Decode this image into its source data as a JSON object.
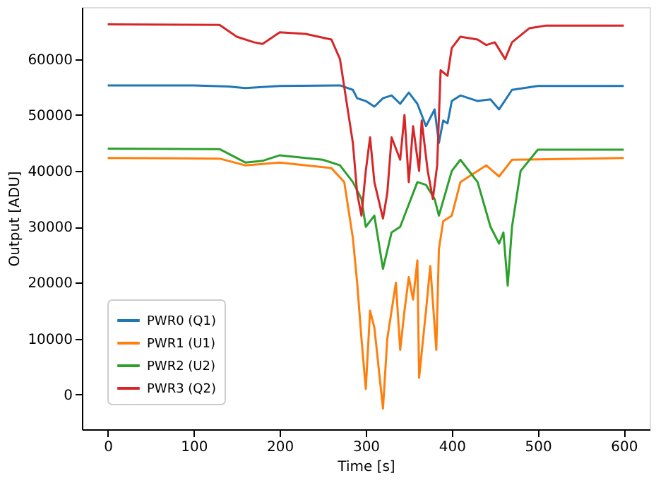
{
  "chart_data": {
    "type": "line",
    "xlabel": "Time [s]",
    "ylabel": "Output [ADU]",
    "xlim": [
      -30,
      630
    ],
    "xticks": [
      0,
      100,
      200,
      300,
      400,
      500,
      600
    ],
    "ylim": [
      -6200,
      69300
    ],
    "yticks": [
      0,
      10000,
      20000,
      30000,
      40000,
      50000,
      60000
    ],
    "grid": false,
    "legend": "bottom left",
    "line_style": "solid",
    "marker": "none",
    "series": [
      {
        "name": "PWR0 (Q1)",
        "color": "#1f77b4",
        "x": [
          0,
          100,
          140,
          160,
          200,
          270,
          285,
          290,
          300,
          310,
          320,
          330,
          340,
          350,
          360,
          370,
          380,
          385,
          390,
          395,
          400,
          410,
          430,
          445,
          455,
          470,
          500,
          600
        ],
        "values": [
          55300,
          55300,
          55100,
          54800,
          55200,
          55300,
          54500,
          53000,
          52500,
          51500,
          53000,
          53500,
          52000,
          54000,
          52000,
          48000,
          51000,
          45000,
          49000,
          48500,
          52500,
          53500,
          52500,
          52800,
          51000,
          54500,
          55200,
          55200
        ]
      },
      {
        "name": "PWR1 (U1)",
        "color": "#ff7f0e",
        "x": [
          0,
          130,
          160,
          200,
          260,
          275,
          285,
          290,
          295,
          300,
          305,
          310,
          320,
          325,
          335,
          340,
          345,
          350,
          355,
          360,
          362,
          370,
          375,
          382,
          385,
          390,
          400,
          410,
          420,
          440,
          455,
          470,
          600
        ],
        "values": [
          42300,
          42200,
          41000,
          41500,
          40500,
          38000,
          28000,
          20000,
          10000,
          1000,
          15000,
          12000,
          -2500,
          10000,
          20000,
          8000,
          15000,
          21000,
          17000,
          24000,
          3000,
          15000,
          23000,
          8000,
          26000,
          31000,
          32000,
          38000,
          39000,
          41000,
          39000,
          42000,
          42300
        ]
      },
      {
        "name": "PWR2 (U2)",
        "color": "#2ca02c",
        "x": [
          0,
          130,
          160,
          180,
          200,
          250,
          270,
          285,
          295,
          300,
          310,
          320,
          330,
          340,
          360,
          370,
          380,
          385,
          400,
          410,
          430,
          445,
          455,
          460,
          465,
          470,
          480,
          500,
          600
        ],
        "values": [
          44000,
          43900,
          41500,
          41800,
          42800,
          42000,
          41000,
          38000,
          35000,
          30000,
          32000,
          22500,
          29000,
          30000,
          38000,
          37500,
          35000,
          32000,
          40000,
          42000,
          38000,
          30000,
          27000,
          29000,
          19500,
          30000,
          40000,
          43800,
          43800
        ]
      },
      {
        "name": "PWR3 (Q2)",
        "color": "#d62728",
        "x": [
          0,
          130,
          150,
          170,
          180,
          200,
          230,
          260,
          270,
          280,
          285,
          290,
          295,
          300,
          305,
          310,
          320,
          325,
          330,
          340,
          345,
          350,
          355,
          362,
          365,
          372,
          378,
          383,
          387,
          395,
          400,
          410,
          430,
          440,
          450,
          462,
          470,
          490,
          510,
          600
        ],
        "values": [
          66200,
          66100,
          64000,
          63000,
          62700,
          64800,
          64500,
          63500,
          60000,
          50000,
          45000,
          36000,
          32000,
          40000,
          46000,
          38000,
          31500,
          36000,
          46000,
          42000,
          50000,
          38000,
          48000,
          40000,
          49000,
          40000,
          35000,
          41000,
          58000,
          57000,
          62000,
          64000,
          63500,
          62500,
          63000,
          60000,
          63000,
          65500,
          66000,
          66000
        ]
      }
    ]
  }
}
